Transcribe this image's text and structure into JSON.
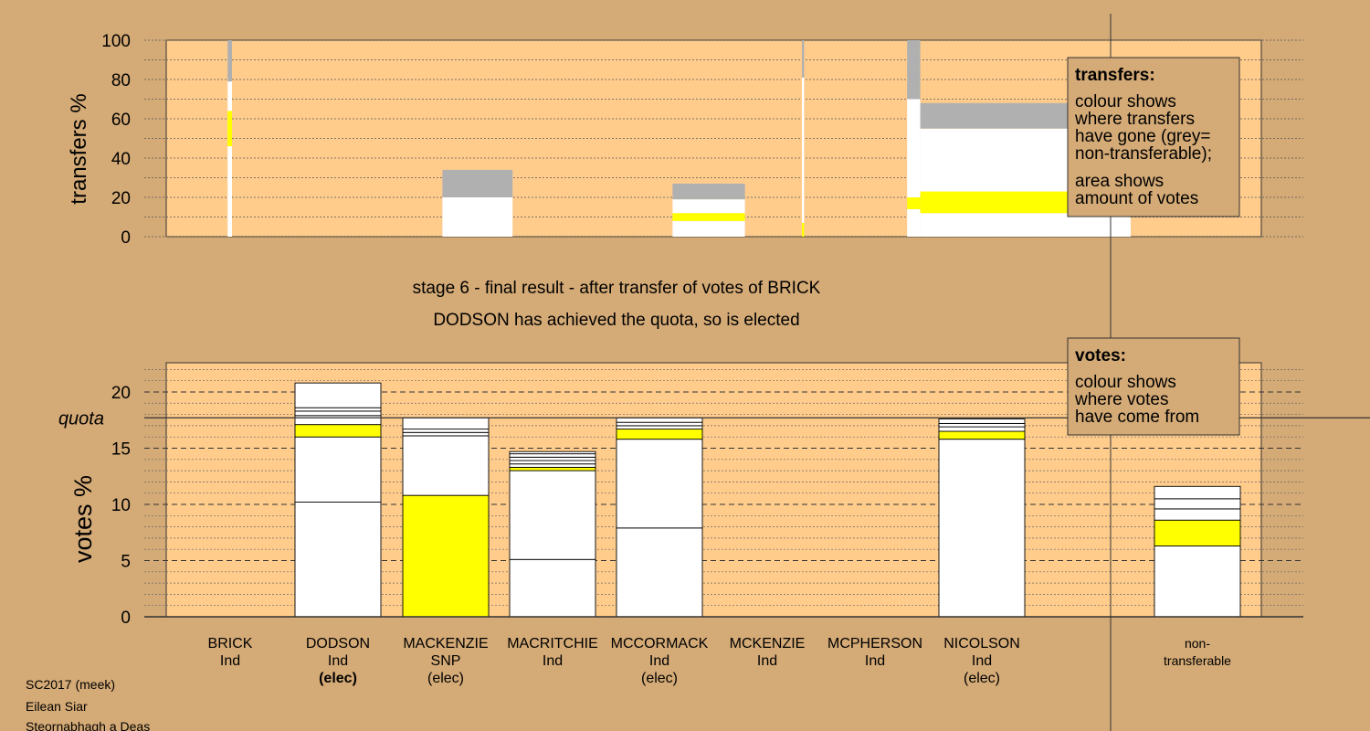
{
  "header": {
    "stage_text": "stage 6 - final result - after transfer of votes of BRICK",
    "elected_text": "DODSON has achieved the quota, so is elected"
  },
  "footer": {
    "line1": "SC2017 (meek)",
    "line2": "Eilean Siar",
    "line3": "Steornabhagh a Deas"
  },
  "legends": {
    "transfers": {
      "title": "transfers:",
      "lines": [
        "colour shows",
        "where transfers",
        "have gone (grey=",
        "non-transferable);",
        "area shows",
        "amount of votes"
      ]
    },
    "votes": {
      "title": "votes:",
      "lines": [
        "colour shows",
        "where votes",
        "have come from"
      ]
    }
  },
  "colors": {
    "background": "#d4aa76",
    "plot_area": "#ffcc8c",
    "snp": "#ffff00",
    "independent": "#ffffff",
    "non_transferable": "#b0b0b0"
  },
  "chart_data": [
    {
      "type": "bar",
      "name": "transfers",
      "ylabel": "transfers %",
      "ylim": [
        0,
        100
      ],
      "yticks": [
        0,
        20,
        40,
        60,
        80,
        100
      ],
      "grid": true,
      "segments": [
        {
          "x": [
            0.28,
            0.3
          ],
          "y": [
            0,
            46
          ],
          "color": "#ffffff"
        },
        {
          "x": [
            0.28,
            0.3
          ],
          "y": [
            46,
            64
          ],
          "color": "#ffff00"
        },
        {
          "x": [
            0.28,
            0.3
          ],
          "y": [
            64,
            79
          ],
          "color": "#ffffff"
        },
        {
          "x": [
            0.28,
            0.3
          ],
          "y": [
            79,
            100
          ],
          "color": "#b0b0b0"
        },
        {
          "x": [
            1.26,
            1.58
          ],
          "y": [
            0,
            20
          ],
          "color": "#ffffff"
        },
        {
          "x": [
            1.26,
            1.58
          ],
          "y": [
            20,
            34
          ],
          "color": "#b0b0b0"
        },
        {
          "x": [
            2.31,
            2.64
          ],
          "y": [
            0,
            8
          ],
          "color": "#ffffff"
        },
        {
          "x": [
            2.31,
            2.64
          ],
          "y": [
            8,
            12
          ],
          "color": "#ffff00"
        },
        {
          "x": [
            2.31,
            2.64
          ],
          "y": [
            12,
            19
          ],
          "color": "#ffffff"
        },
        {
          "x": [
            2.31,
            2.64
          ],
          "y": [
            19,
            27
          ],
          "color": "#b0b0b0"
        },
        {
          "x": [
            2.9,
            2.91
          ],
          "y": [
            0,
            7
          ],
          "color": "#ffff00"
        },
        {
          "x": [
            2.9,
            2.91
          ],
          "y": [
            7,
            81
          ],
          "color": "#ffffff"
        },
        {
          "x": [
            2.9,
            2.91
          ],
          "y": [
            81,
            100
          ],
          "color": "#b0b0b0"
        },
        {
          "x": [
            3.38,
            3.44
          ],
          "y": [
            0,
            14
          ],
          "color": "#ffffff"
        },
        {
          "x": [
            3.38,
            3.44
          ],
          "y": [
            14,
            20
          ],
          "color": "#ffff00"
        },
        {
          "x": [
            3.38,
            3.44
          ],
          "y": [
            20,
            70
          ],
          "color": "#ffffff"
        },
        {
          "x": [
            3.38,
            3.44
          ],
          "y": [
            70,
            100
          ],
          "color": "#b0b0b0"
        },
        {
          "x": [
            3.44,
            4.4
          ],
          "y": [
            0,
            12
          ],
          "color": "#ffffff"
        },
        {
          "x": [
            3.44,
            4.4
          ],
          "y": [
            12,
            23
          ],
          "color": "#ffff00"
        },
        {
          "x": [
            3.44,
            4.4
          ],
          "y": [
            23,
            55
          ],
          "color": "#ffffff"
        },
        {
          "x": [
            3.44,
            4.4
          ],
          "y": [
            55,
            68
          ],
          "color": "#b0b0b0"
        }
      ]
    },
    {
      "type": "bar",
      "name": "votes",
      "ylabel": "votes %",
      "ylim": [
        0,
        22.6
      ],
      "yticks": [
        0,
        5,
        10,
        15,
        20
      ],
      "quota": 17.7,
      "quota_label": "quota",
      "grid": true,
      "categories": [
        {
          "name": "BRICK",
          "party": "Ind",
          "status": ""
        },
        {
          "name": "DODSON",
          "party": "Ind",
          "status": "(elec)"
        },
        {
          "name": "MACKENZIE",
          "party": "SNP",
          "status": "(elec)"
        },
        {
          "name": "MACRITCHIE",
          "party": "Ind",
          "status": ""
        },
        {
          "name": "MCCORMACK",
          "party": "Ind",
          "status": "(elec)"
        },
        {
          "name": "MCKENZIE",
          "party": "Ind",
          "status": ""
        },
        {
          "name": "MCPHERSON",
          "party": "Ind",
          "status": ""
        },
        {
          "name": "NICOLSON",
          "party": "Ind",
          "status": "(elec)"
        },
        {
          "name": "non-",
          "party": "transferable",
          "status": ""
        }
      ],
      "bars": [
        {
          "index": 0,
          "total": 0,
          "segments": []
        },
        {
          "index": 1,
          "total": 20.8,
          "segments": [
            {
              "y": [
                0,
                10.2
              ],
              "color": "#ffffff"
            },
            {
              "y": [
                10.2,
                16.0
              ],
              "color": "#ffffff"
            },
            {
              "y": [
                16.0,
                17.1
              ],
              "color": "#ffff00"
            },
            {
              "y": [
                17.1,
                17.9
              ],
              "color": "#ffffff"
            },
            {
              "y": [
                17.9,
                18.3
              ],
              "color": "#ffffff"
            },
            {
              "y": [
                18.3,
                18.6
              ],
              "color": "#ffffff"
            },
            {
              "y": [
                18.6,
                20.8
              ],
              "color": "#ffffff"
            }
          ]
        },
        {
          "index": 2,
          "total": 17.7,
          "segments": [
            {
              "y": [
                0,
                10.8
              ],
              "color": "#ffff00"
            },
            {
              "y": [
                10.8,
                16.1
              ],
              "color": "#ffffff"
            },
            {
              "y": [
                16.1,
                16.4
              ],
              "color": "#ffffff"
            },
            {
              "y": [
                16.4,
                16.7
              ],
              "color": "#ffffff"
            },
            {
              "y": [
                16.7,
                17.7
              ],
              "color": "#ffffff"
            }
          ]
        },
        {
          "index": 3,
          "total": 14.7,
          "segments": [
            {
              "y": [
                0,
                5.1
              ],
              "color": "#ffffff"
            },
            {
              "y": [
                5.1,
                13.0
              ],
              "color": "#ffffff"
            },
            {
              "y": [
                13.0,
                13.3
              ],
              "color": "#ffff00"
            },
            {
              "y": [
                13.3,
                13.6
              ],
              "color": "#ffffff"
            },
            {
              "y": [
                13.6,
                13.9
              ],
              "color": "#ffffff"
            },
            {
              "y": [
                13.9,
                14.2
              ],
              "color": "#ffffff"
            },
            {
              "y": [
                14.2,
                14.5
              ],
              "color": "#ffffff"
            },
            {
              "y": [
                14.5,
                14.7
              ],
              "color": "#ffffff"
            }
          ]
        },
        {
          "index": 4,
          "total": 17.7,
          "segments": [
            {
              "y": [
                0,
                7.9
              ],
              "color": "#ffffff"
            },
            {
              "y": [
                7.9,
                15.8
              ],
              "color": "#ffffff"
            },
            {
              "y": [
                15.8,
                16.7
              ],
              "color": "#ffff00"
            },
            {
              "y": [
                16.7,
                17.0
              ],
              "color": "#ffffff"
            },
            {
              "y": [
                17.0,
                17.3
              ],
              "color": "#ffffff"
            },
            {
              "y": [
                17.3,
                17.7
              ],
              "color": "#ffffff"
            }
          ]
        },
        {
          "index": 5,
          "total": 0,
          "segments": []
        },
        {
          "index": 6,
          "total": 0,
          "segments": []
        },
        {
          "index": 7,
          "total": 17.6,
          "segments": [
            {
              "y": [
                0,
                15.8
              ],
              "color": "#ffffff"
            },
            {
              "y": [
                15.8,
                16.5
              ],
              "color": "#ffff00"
            },
            {
              "y": [
                16.5,
                16.9
              ],
              "color": "#ffffff"
            },
            {
              "y": [
                16.9,
                17.2
              ],
              "color": "#ffffff"
            },
            {
              "y": [
                17.2,
                17.6
              ],
              "color": "#ffffff"
            }
          ]
        },
        {
          "index": 8,
          "total": 11.6,
          "segments": [
            {
              "y": [
                0,
                6.3
              ],
              "color": "#ffffff"
            },
            {
              "y": [
                6.3,
                8.6
              ],
              "color": "#ffff00"
            },
            {
              "y": [
                8.6,
                9.6
              ],
              "color": "#ffffff"
            },
            {
              "y": [
                9.6,
                10.5
              ],
              "color": "#ffffff"
            },
            {
              "y": [
                10.5,
                11.6
              ],
              "color": "#ffffff"
            }
          ]
        }
      ]
    }
  ]
}
